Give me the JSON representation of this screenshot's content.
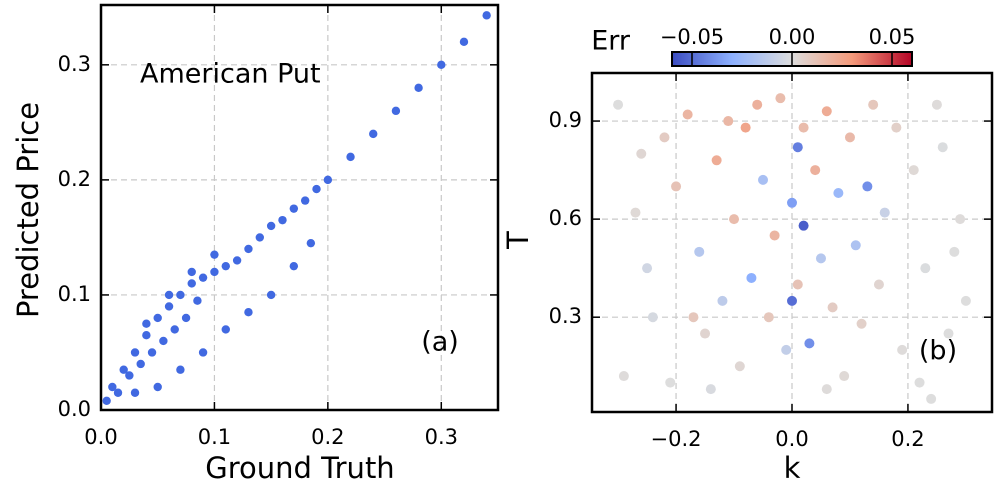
{
  "chart_data": [
    {
      "type": "scatter",
      "x_label": "Ground Truth",
      "y_label": "Predicted Price",
      "annotations": [
        "American Put",
        "(a)"
      ],
      "color": "#4169e1",
      "grid": true,
      "xlim": [
        0,
        0.35
      ],
      "ylim": [
        0,
        0.352
      ],
      "xticks": [
        {
          "value": 0,
          "label": "0.0"
        },
        0.1,
        0.2,
        0.3
      ],
      "yticks": [
        {
          "value": 0,
          "label": "0.0"
        },
        0.1,
        0.2,
        0.3
      ],
      "x": [
        0.005,
        0.01,
        0.015,
        0.02,
        0.025,
        0.03,
        0.035,
        0.04,
        0.045,
        0.05,
        0.055,
        0.06,
        0.065,
        0.07,
        0.075,
        0.08,
        0.085,
        0.09,
        0.1,
        0.11,
        0.12,
        0.13,
        0.14,
        0.15,
        0.16,
        0.17,
        0.18,
        0.19,
        0.2,
        0.22,
        0.24,
        0.26,
        0.28,
        0.3,
        0.32,
        0.34,
        0.03,
        0.05,
        0.07,
        0.09,
        0.11,
        0.13,
        0.15,
        0.17,
        0.185,
        0.04,
        0.06,
        0.08,
        0.1
      ],
      "y": [
        0.008,
        0.02,
        0.015,
        0.035,
        0.03,
        0.05,
        0.04,
        0.065,
        0.05,
        0.08,
        0.06,
        0.09,
        0.07,
        0.1,
        0.08,
        0.11,
        0.095,
        0.115,
        0.12,
        0.125,
        0.13,
        0.14,
        0.15,
        0.16,
        0.165,
        0.175,
        0.182,
        0.192,
        0.2,
        0.22,
        0.24,
        0.26,
        0.28,
        0.3,
        0.32,
        0.343,
        0.015,
        0.02,
        0.035,
        0.05,
        0.07,
        0.085,
        0.1,
        0.125,
        0.145,
        0.075,
        0.1,
        0.12,
        0.135
      ]
    },
    {
      "type": "scatter",
      "x_label": "k",
      "y_label": "T",
      "annotations": [
        "(b)"
      ],
      "grid": true,
      "xlim": [
        -0.345,
        0.345
      ],
      "ylim": [
        0.01,
        1.047
      ],
      "xticks": [
        {
          "value": -0.2,
          "label": "−0.2"
        },
        {
          "value": 0,
          "label": "0.0"
        },
        0.2
      ],
      "yticks": [
        0.3,
        0.6,
        0.9
      ],
      "colorbar": {
        "label": "Err",
        "colormap": "coolwarm",
        "lim": [
          -0.06,
          0.06
        ],
        "ticks": [
          {
            "value": -0.05,
            "label": "−0.05"
          },
          {
            "value": 0,
            "label": "0.00"
          },
          0.05
        ]
      },
      "x": [
        -0.3,
        -0.27,
        -0.24,
        -0.29,
        -0.22,
        -0.25,
        -0.2,
        -0.18,
        -0.16,
        -0.15,
        -0.13,
        -0.12,
        -0.1,
        -0.09,
        -0.08,
        -0.07,
        -0.05,
        -0.04,
        -0.03,
        -0.02,
        -0.01,
        0.0,
        0.01,
        0.01,
        0.02,
        0.03,
        0.04,
        0.05,
        0.06,
        0.07,
        0.08,
        0.09,
        0.1,
        0.11,
        0.12,
        0.13,
        0.14,
        0.15,
        0.16,
        0.18,
        0.19,
        0.21,
        0.23,
        0.25,
        0.27,
        0.29,
        0.22,
        0.26,
        0.3,
        0.24,
        -0.21,
        -0.14,
        -0.06,
        -0.11,
        0.0,
        0.02,
        -0.17,
        0.06,
        -0.26,
        0.28
      ],
      "y": [
        0.95,
        0.62,
        0.3,
        0.12,
        0.85,
        0.45,
        0.7,
        0.92,
        0.5,
        0.25,
        0.78,
        0.35,
        0.6,
        0.15,
        0.88,
        0.42,
        0.72,
        0.3,
        0.55,
        0.97,
        0.2,
        0.65,
        0.4,
        0.82,
        0.58,
        0.22,
        0.75,
        0.48,
        0.93,
        0.33,
        0.68,
        0.12,
        0.85,
        0.52,
        0.28,
        0.7,
        0.95,
        0.4,
        0.62,
        0.88,
        0.2,
        0.75,
        0.45,
        0.95,
        0.25,
        0.6,
        0.1,
        0.82,
        0.35,
        0.05,
        0.1,
        0.08,
        0.95,
        0.9,
        0.35,
        0.88,
        0.3,
        0.08,
        0.8,
        0.5
      ],
      "c": [
        0.0,
        0.002,
        -0.003,
        0.001,
        0.008,
        -0.005,
        0.012,
        0.018,
        -0.015,
        0.004,
        0.022,
        -0.012,
        0.015,
        0.003,
        0.025,
        -0.03,
        -0.02,
        0.01,
        0.018,
        0.015,
        -0.01,
        -0.035,
        0.012,
        -0.045,
        -0.055,
        -0.04,
        0.02,
        -0.015,
        0.022,
        0.008,
        -0.025,
        0.002,
        0.016,
        -0.018,
        0.006,
        -0.04,
        0.01,
        0.004,
        -0.008,
        0.006,
        0.001,
        0.002,
        -0.001,
        0.001,
        0.0,
        0.001,
        0.0,
        -0.001,
        0.0,
        0.0,
        0.0,
        -0.002,
        0.02,
        0.017,
        -0.05,
        0.015,
        0.01,
        0.001,
        0.003,
        0.0
      ]
    }
  ]
}
